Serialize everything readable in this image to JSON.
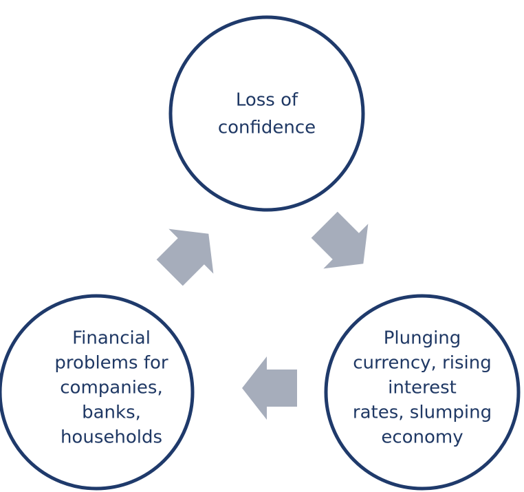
{
  "nodes": [
    {
      "lines": [
        "Loss of",
        "confidence"
      ]
    },
    {
      "lines": [
        "Plunging",
        "currency, rising",
        "interest",
        "rates, slumping",
        "economy"
      ]
    },
    {
      "lines": [
        "Financial",
        "problems for",
        "companies,",
        "banks,",
        "households"
      ]
    }
  ]
}
